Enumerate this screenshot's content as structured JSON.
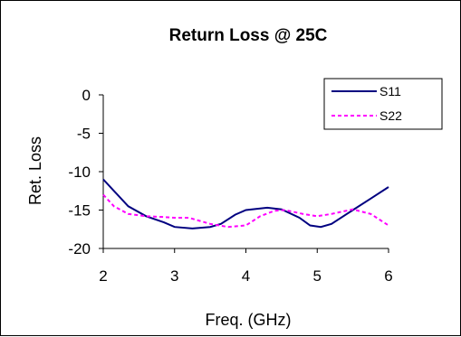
{
  "chart_data": {
    "type": "line",
    "title": "Return Loss @ 25C",
    "xlabel": "Freq. (GHz)",
    "ylabel": "Ret. Loss",
    "xlim": [
      2,
      6
    ],
    "ylim": [
      -20,
      0
    ],
    "xticks": [
      2,
      3,
      4,
      5,
      6
    ],
    "yticks": [
      0,
      -5,
      -10,
      -15,
      -20
    ],
    "grid": false,
    "legend_position": "top-right",
    "series": [
      {
        "name": "S11",
        "color": "#000080",
        "style": "solid",
        "x": [
          2.0,
          2.15,
          2.35,
          2.6,
          2.85,
          3.0,
          3.25,
          3.5,
          3.65,
          3.85,
          4.0,
          4.3,
          4.5,
          4.75,
          4.9,
          5.05,
          5.2,
          5.5,
          5.75,
          6.0
        ],
        "y": [
          -11.0,
          -12.5,
          -14.5,
          -15.8,
          -16.6,
          -17.2,
          -17.4,
          -17.2,
          -16.8,
          -15.6,
          -15.0,
          -14.7,
          -14.9,
          -16.0,
          -17.0,
          -17.2,
          -16.8,
          -15.0,
          -13.5,
          -12.0
        ]
      },
      {
        "name": "S22",
        "color": "#FF00FF",
        "style": "dashed",
        "x": [
          2.0,
          2.15,
          2.35,
          2.6,
          2.85,
          3.0,
          3.2,
          3.5,
          3.75,
          4.0,
          4.2,
          4.4,
          4.55,
          4.8,
          5.0,
          5.2,
          5.5,
          5.75,
          6.0
        ],
        "y": [
          -13.0,
          -14.5,
          -15.5,
          -15.8,
          -15.9,
          -16.0,
          -16.0,
          -16.8,
          -17.2,
          -17.0,
          -15.8,
          -15.1,
          -15.0,
          -15.5,
          -15.8,
          -15.5,
          -14.9,
          -15.5,
          -17.0
        ]
      }
    ]
  }
}
